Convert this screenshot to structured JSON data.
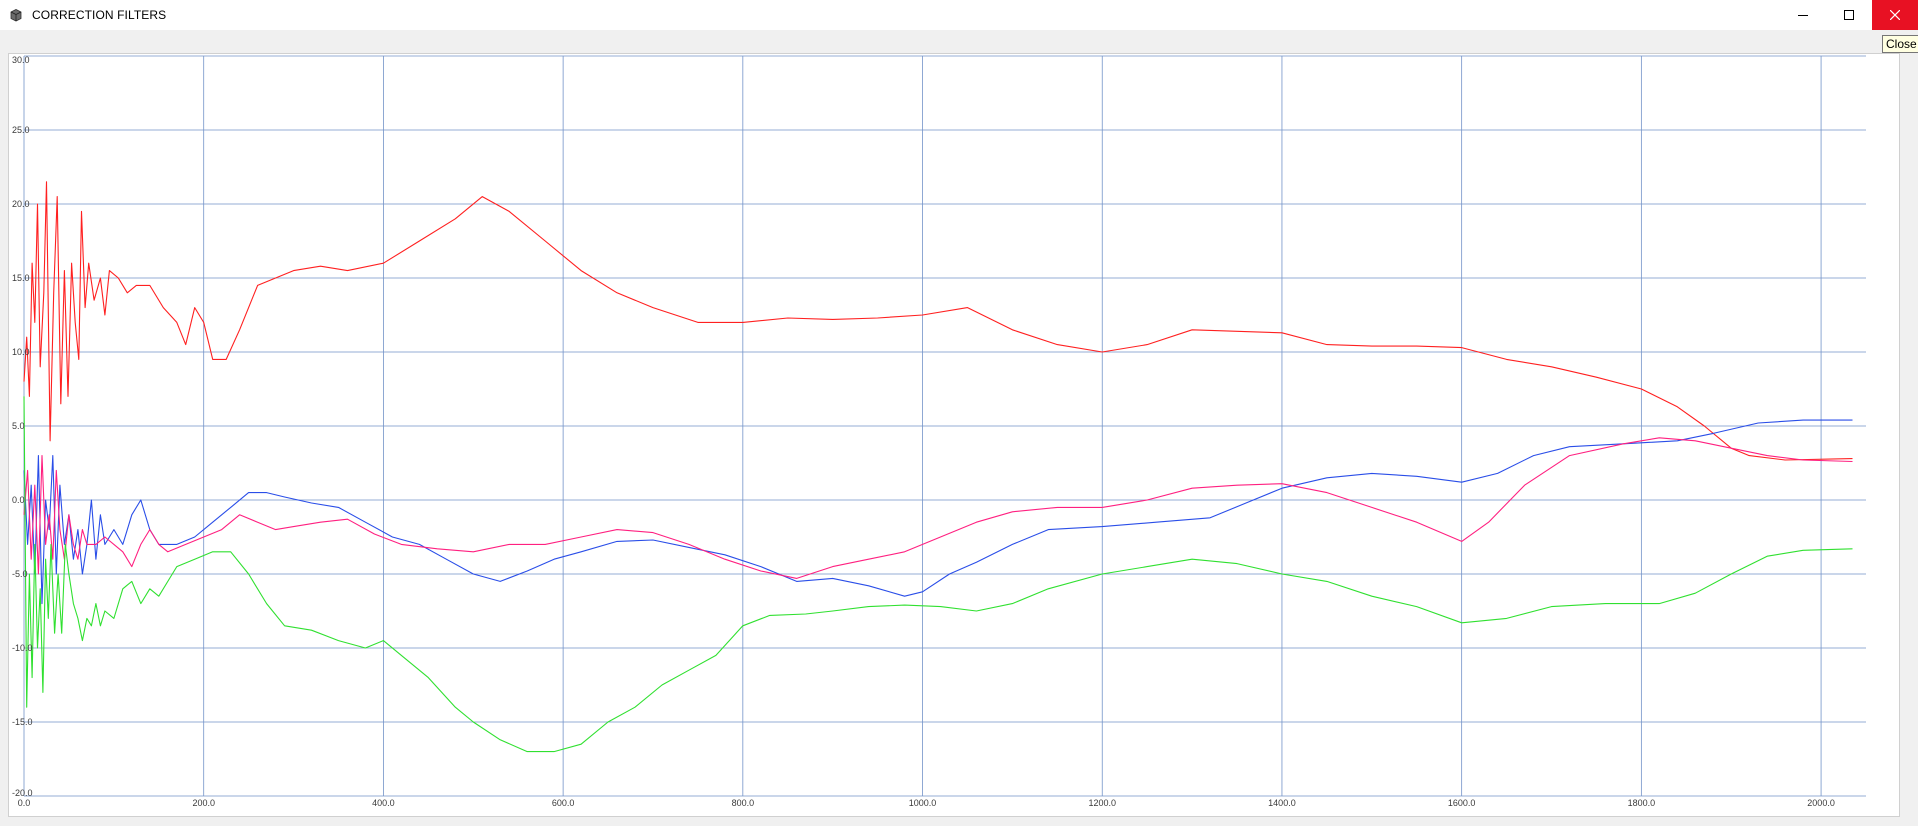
{
  "window": {
    "title": "CORRECTION FILTERS",
    "tooltip": "Close",
    "icons": [
      "app-icon",
      "minimize-icon",
      "maximize-icon",
      "close-icon"
    ]
  },
  "chart_data": {
    "type": "line",
    "title": "",
    "xlabel": "",
    "ylabel": "",
    "xlim": [
      0,
      2050
    ],
    "ylim": [
      -20,
      30
    ],
    "grid": true,
    "xticks": [
      0,
      200,
      400,
      600,
      800,
      1000,
      1200,
      1400,
      1600,
      1800,
      2000
    ],
    "yticks": [
      -20,
      -15,
      -10,
      -5,
      0,
      5,
      10,
      15,
      20,
      25,
      30
    ],
    "xtick_labels": [
      "0.0",
      "200.0",
      "400.0",
      "600.0",
      "800.0",
      "1000.0",
      "1200.0",
      "1400.0",
      "1600.0",
      "1800.0",
      "2000.0"
    ],
    "ytick_labels": [
      "-20.0",
      "-15.0",
      "-10.0",
      "-5.0",
      "0.0",
      "5.0",
      "10.0",
      "15.0",
      "20.0",
      "25.0",
      "30.0"
    ],
    "colors": {
      "grid": "#7393c8",
      "background": "#ffffff"
    },
    "series": [
      {
        "color": "#ff2020",
        "points": [
          [
            0,
            8
          ],
          [
            3,
            11
          ],
          [
            6,
            7
          ],
          [
            9,
            16
          ],
          [
            12,
            12
          ],
          [
            15,
            20
          ],
          [
            18,
            9
          ],
          [
            22,
            14
          ],
          [
            25,
            21.5
          ],
          [
            29,
            4
          ],
          [
            33,
            14
          ],
          [
            37,
            20.5
          ],
          [
            41,
            6.5
          ],
          [
            45,
            15.5
          ],
          [
            49,
            7
          ],
          [
            53,
            16
          ],
          [
            57,
            12
          ],
          [
            61,
            9.5
          ],
          [
            64,
            19.5
          ],
          [
            68,
            13
          ],
          [
            72,
            16
          ],
          [
            78,
            13.5
          ],
          [
            85,
            15
          ],
          [
            90,
            12.5
          ],
          [
            95,
            15.5
          ],
          [
            105,
            15
          ],
          [
            115,
            14
          ],
          [
            125,
            14.5
          ],
          [
            140,
            14.5
          ],
          [
            155,
            13
          ],
          [
            170,
            12
          ],
          [
            180,
            10.5
          ],
          [
            190,
            13
          ],
          [
            200,
            12
          ],
          [
            210,
            9.5
          ],
          [
            225,
            9.5
          ],
          [
            240,
            11.5
          ],
          [
            260,
            14.5
          ],
          [
            280,
            15
          ],
          [
            300,
            15.5
          ],
          [
            330,
            15.8
          ],
          [
            360,
            15.5
          ],
          [
            400,
            16
          ],
          [
            440,
            17.5
          ],
          [
            480,
            19
          ],
          [
            510,
            20.5
          ],
          [
            540,
            19.5
          ],
          [
            580,
            17.5
          ],
          [
            620,
            15.5
          ],
          [
            660,
            14
          ],
          [
            700,
            13
          ],
          [
            750,
            12
          ],
          [
            800,
            12
          ],
          [
            850,
            12.3
          ],
          [
            900,
            12.2
          ],
          [
            950,
            12.3
          ],
          [
            1000,
            12.5
          ],
          [
            1050,
            13
          ],
          [
            1100,
            11.5
          ],
          [
            1150,
            10.5
          ],
          [
            1200,
            10
          ],
          [
            1250,
            10.5
          ],
          [
            1300,
            11.5
          ],
          [
            1400,
            11.3
          ],
          [
            1450,
            10.5
          ],
          [
            1500,
            10.4
          ],
          [
            1550,
            10.4
          ],
          [
            1600,
            10.3
          ],
          [
            1650,
            9.5
          ],
          [
            1700,
            9
          ],
          [
            1750,
            8.3
          ],
          [
            1800,
            7.5
          ],
          [
            1840,
            6.3
          ],
          [
            1870,
            5
          ],
          [
            1900,
            3.5
          ],
          [
            1920,
            3
          ],
          [
            1960,
            2.7
          ],
          [
            2035,
            2.8
          ]
        ]
      },
      {
        "color": "#2a4ee8",
        "points": [
          [
            0,
            2
          ],
          [
            4,
            -3
          ],
          [
            8,
            1
          ],
          [
            12,
            -5
          ],
          [
            16,
            3
          ],
          [
            20,
            -7
          ],
          [
            24,
            0
          ],
          [
            28,
            -2
          ],
          [
            32,
            3
          ],
          [
            36,
            -5
          ],
          [
            40,
            1
          ],
          [
            45,
            -3
          ],
          [
            50,
            -1
          ],
          [
            55,
            -4
          ],
          [
            60,
            -2
          ],
          [
            65,
            -5
          ],
          [
            70,
            -3
          ],
          [
            75,
            0
          ],
          [
            80,
            -4
          ],
          [
            85,
            -1
          ],
          [
            90,
            -3
          ],
          [
            100,
            -2
          ],
          [
            110,
            -3
          ],
          [
            120,
            -1
          ],
          [
            130,
            0
          ],
          [
            140,
            -2
          ],
          [
            150,
            -3
          ],
          [
            170,
            -3
          ],
          [
            190,
            -2.5
          ],
          [
            210,
            -1.5
          ],
          [
            230,
            -0.5
          ],
          [
            250,
            0.5
          ],
          [
            270,
            0.5
          ],
          [
            290,
            0.2
          ],
          [
            320,
            -0.2
          ],
          [
            350,
            -0.5
          ],
          [
            380,
            -1.5
          ],
          [
            410,
            -2.5
          ],
          [
            440,
            -3
          ],
          [
            470,
            -4
          ],
          [
            500,
            -5
          ],
          [
            530,
            -5.5
          ],
          [
            560,
            -4.8
          ],
          [
            590,
            -4
          ],
          [
            620,
            -3.5
          ],
          [
            660,
            -2.8
          ],
          [
            700,
            -2.7
          ],
          [
            740,
            -3.2
          ],
          [
            780,
            -3.7
          ],
          [
            820,
            -4.5
          ],
          [
            860,
            -5.5
          ],
          [
            900,
            -5.3
          ],
          [
            940,
            -5.8
          ],
          [
            980,
            -6.5
          ],
          [
            1000,
            -6.2
          ],
          [
            1030,
            -5
          ],
          [
            1060,
            -4.2
          ],
          [
            1100,
            -3
          ],
          [
            1140,
            -2
          ],
          [
            1200,
            -1.8
          ],
          [
            1260,
            -1.5
          ],
          [
            1320,
            -1.2
          ],
          [
            1360,
            -0.2
          ],
          [
            1400,
            0.8
          ],
          [
            1450,
            1.5
          ],
          [
            1500,
            1.8
          ],
          [
            1550,
            1.6
          ],
          [
            1600,
            1.2
          ],
          [
            1640,
            1.8
          ],
          [
            1680,
            3
          ],
          [
            1720,
            3.6
          ],
          [
            1780,
            3.8
          ],
          [
            1840,
            4
          ],
          [
            1880,
            4.5
          ],
          [
            1930,
            5.2
          ],
          [
            1980,
            5.4
          ],
          [
            2035,
            5.4
          ]
        ]
      },
      {
        "color": "#ff2080",
        "points": [
          [
            0,
            -1
          ],
          [
            4,
            2
          ],
          [
            8,
            -4
          ],
          [
            12,
            1
          ],
          [
            16,
            -5
          ],
          [
            20,
            3
          ],
          [
            24,
            -3
          ],
          [
            28,
            -1
          ],
          [
            32,
            -4
          ],
          [
            36,
            2
          ],
          [
            40,
            -2
          ],
          [
            45,
            -4
          ],
          [
            50,
            -1
          ],
          [
            55,
            -3
          ],
          [
            60,
            -4
          ],
          [
            65,
            -2
          ],
          [
            70,
            -3
          ],
          [
            80,
            -3
          ],
          [
            90,
            -2.5
          ],
          [
            100,
            -3
          ],
          [
            110,
            -3.5
          ],
          [
            120,
            -4.5
          ],
          [
            130,
            -3
          ],
          [
            140,
            -2
          ],
          [
            150,
            -3
          ],
          [
            160,
            -3.5
          ],
          [
            180,
            -3
          ],
          [
            200,
            -2.5
          ],
          [
            220,
            -2
          ],
          [
            240,
            -1
          ],
          [
            260,
            -1.5
          ],
          [
            280,
            -2
          ],
          [
            300,
            -1.8
          ],
          [
            330,
            -1.5
          ],
          [
            360,
            -1.3
          ],
          [
            390,
            -2.3
          ],
          [
            420,
            -3
          ],
          [
            460,
            -3.3
          ],
          [
            500,
            -3.5
          ],
          [
            540,
            -3
          ],
          [
            580,
            -3
          ],
          [
            620,
            -2.5
          ],
          [
            660,
            -2
          ],
          [
            700,
            -2.2
          ],
          [
            740,
            -3
          ],
          [
            780,
            -4
          ],
          [
            820,
            -4.8
          ],
          [
            860,
            -5.3
          ],
          [
            900,
            -4.5
          ],
          [
            940,
            -4
          ],
          [
            980,
            -3.5
          ],
          [
            1020,
            -2.5
          ],
          [
            1060,
            -1.5
          ],
          [
            1100,
            -0.8
          ],
          [
            1150,
            -0.5
          ],
          [
            1200,
            -0.5
          ],
          [
            1250,
            0
          ],
          [
            1300,
            0.8
          ],
          [
            1350,
            1
          ],
          [
            1400,
            1.1
          ],
          [
            1450,
            0.5
          ],
          [
            1500,
            -0.5
          ],
          [
            1550,
            -1.5
          ],
          [
            1600,
            -2.8
          ],
          [
            1630,
            -1.5
          ],
          [
            1670,
            1
          ],
          [
            1720,
            3
          ],
          [
            1780,
            3.8
          ],
          [
            1820,
            4.2
          ],
          [
            1860,
            4
          ],
          [
            1900,
            3.5
          ],
          [
            1940,
            3
          ],
          [
            1980,
            2.7
          ],
          [
            2035,
            2.6
          ]
        ]
      },
      {
        "color": "#30e030",
        "points": [
          [
            0,
            7
          ],
          [
            3,
            -14
          ],
          [
            6,
            -5
          ],
          [
            9,
            -12
          ],
          [
            12,
            -3
          ],
          [
            15,
            -10
          ],
          [
            18,
            -6
          ],
          [
            21,
            -13
          ],
          [
            24,
            -4
          ],
          [
            27,
            -8
          ],
          [
            30,
            -3
          ],
          [
            34,
            -9
          ],
          [
            38,
            -5
          ],
          [
            42,
            -9
          ],
          [
            46,
            -3
          ],
          [
            50,
            -5
          ],
          [
            55,
            -7
          ],
          [
            60,
            -8
          ],
          [
            65,
            -9.5
          ],
          [
            70,
            -8
          ],
          [
            75,
            -8.5
          ],
          [
            80,
            -7
          ],
          [
            85,
            -8.5
          ],
          [
            90,
            -7.5
          ],
          [
            100,
            -8
          ],
          [
            110,
            -6
          ],
          [
            120,
            -5.5
          ],
          [
            130,
            -7
          ],
          [
            140,
            -6
          ],
          [
            150,
            -6.5
          ],
          [
            160,
            -5.5
          ],
          [
            170,
            -4.5
          ],
          [
            190,
            -4
          ],
          [
            210,
            -3.5
          ],
          [
            230,
            -3.5
          ],
          [
            250,
            -5
          ],
          [
            270,
            -7
          ],
          [
            290,
            -8.5
          ],
          [
            320,
            -8.8
          ],
          [
            350,
            -9.5
          ],
          [
            380,
            -10
          ],
          [
            400,
            -9.5
          ],
          [
            420,
            -10.5
          ],
          [
            450,
            -12
          ],
          [
            480,
            -14
          ],
          [
            500,
            -15
          ],
          [
            530,
            -16.2
          ],
          [
            560,
            -17
          ],
          [
            590,
            -17
          ],
          [
            620,
            -16.5
          ],
          [
            650,
            -15
          ],
          [
            680,
            -14
          ],
          [
            710,
            -12.5
          ],
          [
            740,
            -11.5
          ],
          [
            770,
            -10.5
          ],
          [
            800,
            -8.5
          ],
          [
            830,
            -7.8
          ],
          [
            870,
            -7.7
          ],
          [
            900,
            -7.5
          ],
          [
            940,
            -7.2
          ],
          [
            980,
            -7.1
          ],
          [
            1020,
            -7.2
          ],
          [
            1060,
            -7.5
          ],
          [
            1100,
            -7
          ],
          [
            1140,
            -6
          ],
          [
            1200,
            -5
          ],
          [
            1250,
            -4.5
          ],
          [
            1300,
            -4
          ],
          [
            1350,
            -4.3
          ],
          [
            1400,
            -5
          ],
          [
            1450,
            -5.5
          ],
          [
            1500,
            -6.5
          ],
          [
            1550,
            -7.2
          ],
          [
            1600,
            -8.3
          ],
          [
            1650,
            -8
          ],
          [
            1700,
            -7.2
          ],
          [
            1760,
            -7
          ],
          [
            1820,
            -7
          ],
          [
            1860,
            -6.3
          ],
          [
            1900,
            -5
          ],
          [
            1940,
            -3.8
          ],
          [
            1980,
            -3.4
          ],
          [
            2035,
            -3.3
          ]
        ]
      }
    ]
  }
}
